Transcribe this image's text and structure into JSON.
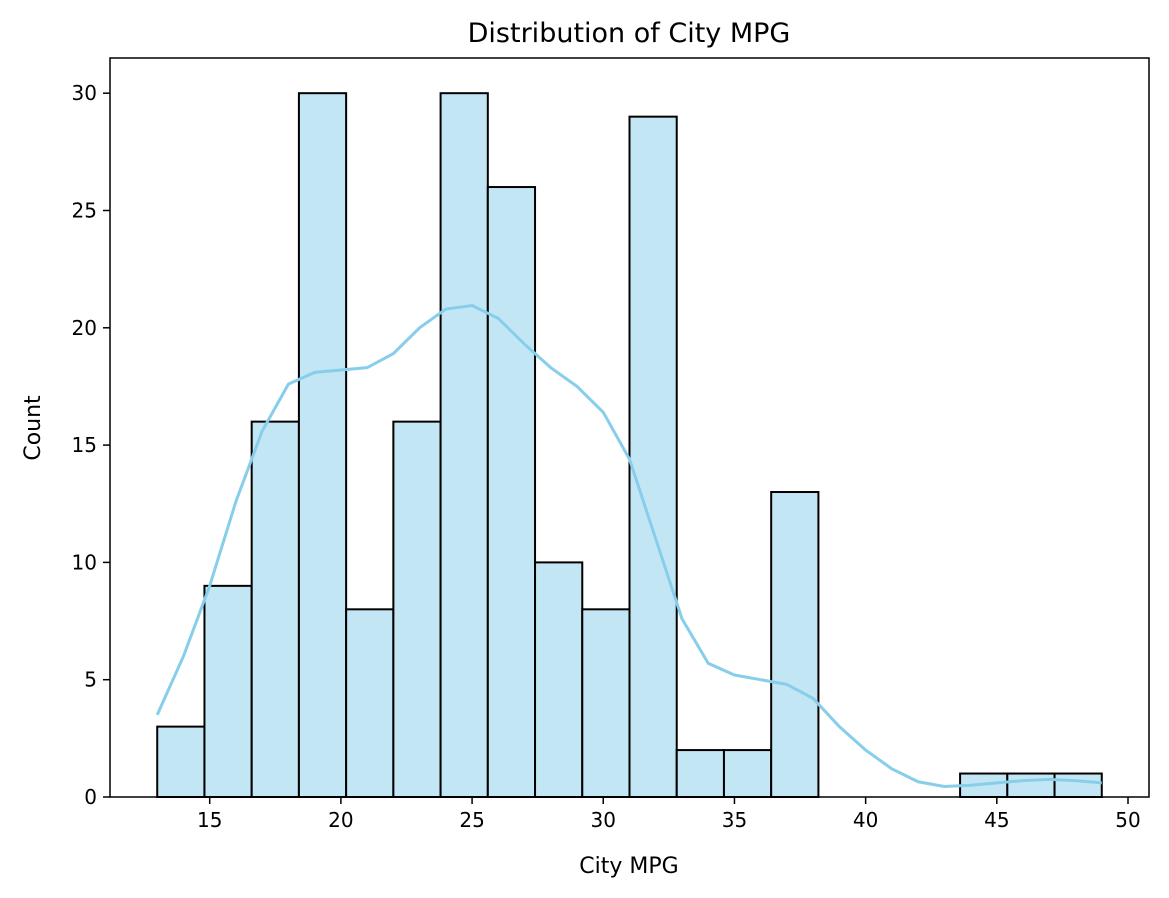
{
  "chart_data": {
    "type": "bar",
    "subtype": "histogram-with-kde",
    "title": "Distribution of City MPG",
    "xlabel": "City MPG",
    "ylabel": "Count",
    "xlim": [
      11.2,
      50.8
    ],
    "ylim": [
      0,
      31.5
    ],
    "xticks": [
      15,
      20,
      25,
      30,
      35,
      40,
      45,
      50
    ],
    "yticks": [
      0,
      5,
      10,
      15,
      20,
      25,
      30
    ],
    "bin_edges": [
      13,
      14.8,
      16.6,
      18.4,
      20.2,
      22,
      23.8,
      25.6,
      27.4,
      29.2,
      31,
      32.8,
      34.6,
      36.4,
      38.2,
      40,
      41.8,
      43.6,
      45.4,
      47.2,
      49
    ],
    "values": [
      3,
      9,
      16,
      30,
      8,
      16,
      30,
      26,
      10,
      8,
      29,
      2,
      2,
      13,
      0,
      0,
      0,
      1,
      1,
      1
    ],
    "kde": {
      "x": [
        13,
        14,
        15,
        16,
        17,
        18,
        19,
        20,
        21,
        22,
        23,
        24,
        25,
        26,
        27,
        28,
        29,
        30,
        31,
        32,
        33,
        34,
        35,
        36,
        37,
        38,
        39,
        40,
        41,
        42,
        43,
        44,
        45,
        46,
        47,
        48,
        49
      ],
      "y": [
        3.5,
        6,
        9,
        12.6,
        15.6,
        17.6,
        18.1,
        18.2,
        18.3,
        18.9,
        20,
        20.8,
        20.95,
        20.4,
        19.3,
        18.3,
        17.5,
        16.4,
        14.4,
        11,
        7.6,
        5.7,
        5.2,
        5.0,
        4.8,
        4.2,
        3.0,
        2.0,
        1.2,
        0.65,
        0.45,
        0.5,
        0.6,
        0.7,
        0.75,
        0.7,
        0.6
      ]
    },
    "grid": false,
    "legend": "none",
    "colors": {
      "bar_fill": "#c3e6f4",
      "bar_edge": "#000000",
      "kde_line": "#87ceeb"
    }
  }
}
